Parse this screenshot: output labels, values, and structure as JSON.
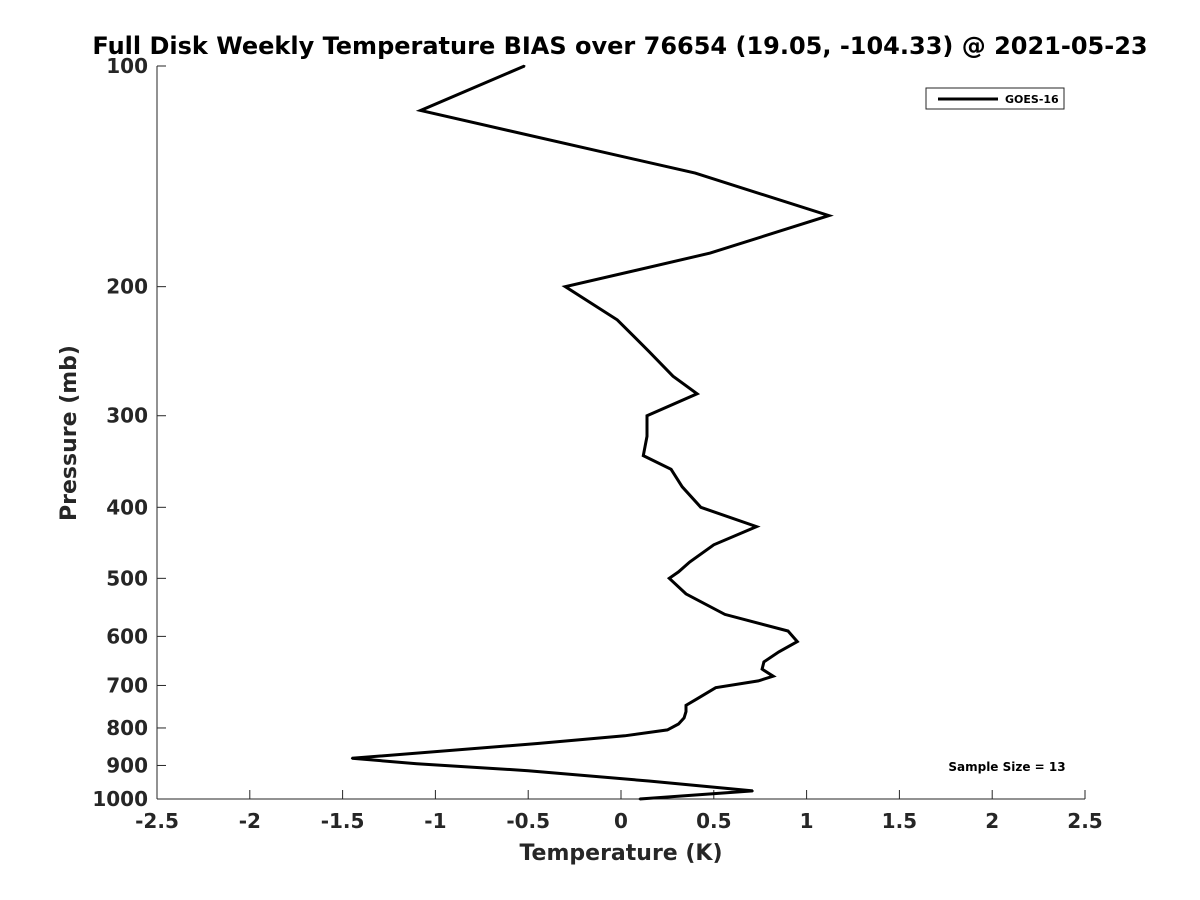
{
  "chart_data": {
    "type": "line",
    "title": "Full Disk Weekly Temperature BIAS over 76654 (19.05, -104.33) @ 2021-05-23",
    "xlabel": "Temperature (K)",
    "ylabel": "Pressure (mb)",
    "xlim": [
      -2.5,
      2.5
    ],
    "ylim": [
      100,
      1000
    ],
    "y_scale": "log",
    "y_reversed": true,
    "x_ticks": [
      "-2.5",
      "-2",
      "-1.5",
      "-1",
      "-0.5",
      "0",
      "0.5",
      "1",
      "1.5",
      "2",
      "2.5"
    ],
    "x_tick_values": [
      -2.5,
      -2,
      -1.5,
      -1,
      -0.5,
      0,
      0.5,
      1,
      1.5,
      2,
      2.5
    ],
    "y_ticks": [
      "100",
      "200",
      "300",
      "400",
      "500",
      "600",
      "700",
      "800",
      "900",
      "1000"
    ],
    "y_tick_values": [
      100,
      200,
      300,
      400,
      500,
      600,
      700,
      800,
      900,
      1000
    ],
    "grid": false,
    "legend_position": "top-right",
    "annotation": "Sample Size = 13",
    "series": [
      {
        "name": "GOES-16",
        "color": "#000000",
        "points": [
          {
            "x": -0.52,
            "y": 100
          },
          {
            "x": -1.08,
            "y": 115
          },
          {
            "x": 0.4,
            "y": 140
          },
          {
            "x": 1.12,
            "y": 160
          },
          {
            "x": 0.48,
            "y": 180
          },
          {
            "x": -0.3,
            "y": 200
          },
          {
            "x": -0.02,
            "y": 222
          },
          {
            "x": 0.15,
            "y": 245
          },
          {
            "x": 0.28,
            "y": 265
          },
          {
            "x": 0.41,
            "y": 280
          },
          {
            "x": 0.14,
            "y": 300
          },
          {
            "x": 0.14,
            "y": 320
          },
          {
            "x": 0.12,
            "y": 340
          },
          {
            "x": 0.27,
            "y": 355
          },
          {
            "x": 0.33,
            "y": 375
          },
          {
            "x": 0.43,
            "y": 400
          },
          {
            "x": 0.73,
            "y": 425
          },
          {
            "x": 0.5,
            "y": 450
          },
          {
            "x": 0.37,
            "y": 475
          },
          {
            "x": 0.31,
            "y": 490
          },
          {
            "x": 0.26,
            "y": 500
          },
          {
            "x": 0.35,
            "y": 525
          },
          {
            "x": 0.56,
            "y": 560
          },
          {
            "x": 0.9,
            "y": 590
          },
          {
            "x": 0.95,
            "y": 610
          },
          {
            "x": 0.85,
            "y": 630
          },
          {
            "x": 0.77,
            "y": 650
          },
          {
            "x": 0.76,
            "y": 665
          },
          {
            "x": 0.82,
            "y": 680
          },
          {
            "x": 0.74,
            "y": 690
          },
          {
            "x": 0.51,
            "y": 705
          },
          {
            "x": 0.41,
            "y": 730
          },
          {
            "x": 0.35,
            "y": 745
          },
          {
            "x": 0.35,
            "y": 760
          },
          {
            "x": 0.34,
            "y": 775
          },
          {
            "x": 0.31,
            "y": 790
          },
          {
            "x": 0.25,
            "y": 805
          },
          {
            "x": 0.02,
            "y": 820
          },
          {
            "x": -0.45,
            "y": 840
          },
          {
            "x": -1.45,
            "y": 880
          },
          {
            "x": -1.1,
            "y": 895
          },
          {
            "x": -0.5,
            "y": 915
          },
          {
            "x": 0.15,
            "y": 945
          },
          {
            "x": 0.71,
            "y": 975
          },
          {
            "x": 0.1,
            "y": 1000
          }
        ]
      }
    ]
  }
}
